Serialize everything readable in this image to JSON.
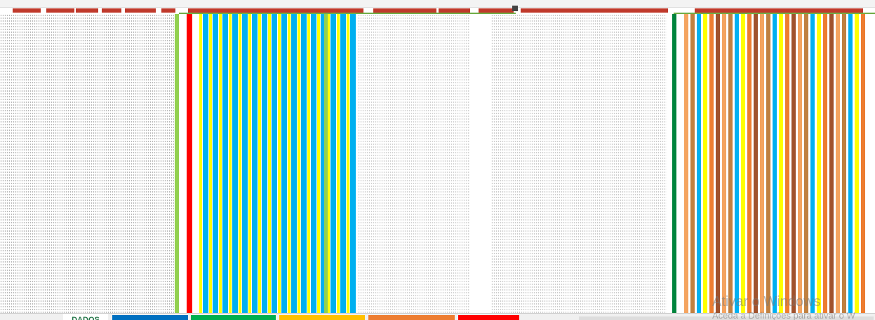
{
  "sheet_tabs": [
    "DADOS"
  ],
  "watermark": {
    "title": "Ativar o Windows",
    "subtitle": "Aceda a Definições para ativar o W"
  }
}
